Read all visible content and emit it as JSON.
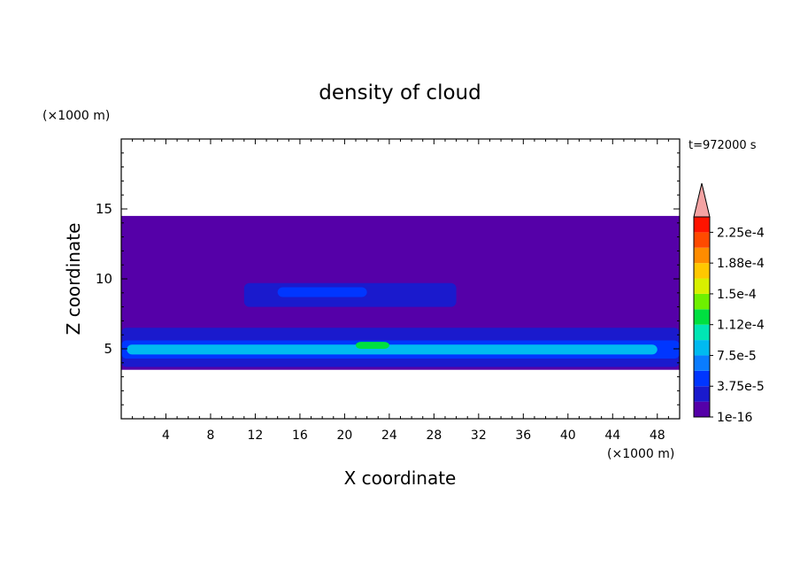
{
  "chart_data": {
    "type": "heatmap",
    "title": "density of cloud",
    "xlabel": "X coordinate",
    "ylabel": "Z coordinate",
    "x_unit": "(×1000 m)",
    "y_unit": "(×1000 m)",
    "time_label": "t=972000 s",
    "xlim": [
      0,
      50
    ],
    "ylim": [
      0,
      20
    ],
    "x_ticks": [
      4,
      8,
      12,
      16,
      20,
      24,
      28,
      32,
      36,
      40,
      44,
      48
    ],
    "y_ticks": [
      5,
      10,
      15
    ],
    "colorbar": {
      "labels": [
        "1e-16",
        "3.75e-5",
        "7.5e-5",
        "1.12e-4",
        "1.5e-4",
        "1.88e-4",
        "2.25e-4"
      ],
      "colors": [
        "#5500a8",
        "#1a1acd",
        "#0036ff",
        "#0a7cff",
        "#00baf0",
        "#00e6b4",
        "#00e040",
        "#6ef000",
        "#d8f000",
        "#ffc800",
        "#ff8c00",
        "#ff4a00",
        "#ff1400"
      ],
      "over_color": "#f4a3a3"
    },
    "cloud_region": {
      "x_range": [
        0,
        50
      ],
      "z_bottom": 3.5,
      "z_top": 14.5,
      "background_level": "1e-16"
    },
    "cloud_layers": [
      {
        "x": [
          0,
          50
        ],
        "z": [
          3.7,
          6.5
        ],
        "level_color": "#1a1acd"
      },
      {
        "x": [
          0,
          50
        ],
        "z": [
          4.3,
          5.6
        ],
        "level_color": "#0036ff"
      },
      {
        "x": [
          0.5,
          48
        ],
        "z": [
          4.6,
          5.3
        ],
        "level_color": "#00baf0"
      },
      {
        "x": [
          21,
          24
        ],
        "z": [
          5.0,
          5.5
        ],
        "level_color": "#00e040"
      },
      {
        "x": [
          11,
          30
        ],
        "z": [
          8.0,
          9.7
        ],
        "level_color": "#1a1acd"
      },
      {
        "x": [
          14,
          22
        ],
        "z": [
          8.7,
          9.4
        ],
        "level_color": "#0036ff"
      }
    ]
  }
}
